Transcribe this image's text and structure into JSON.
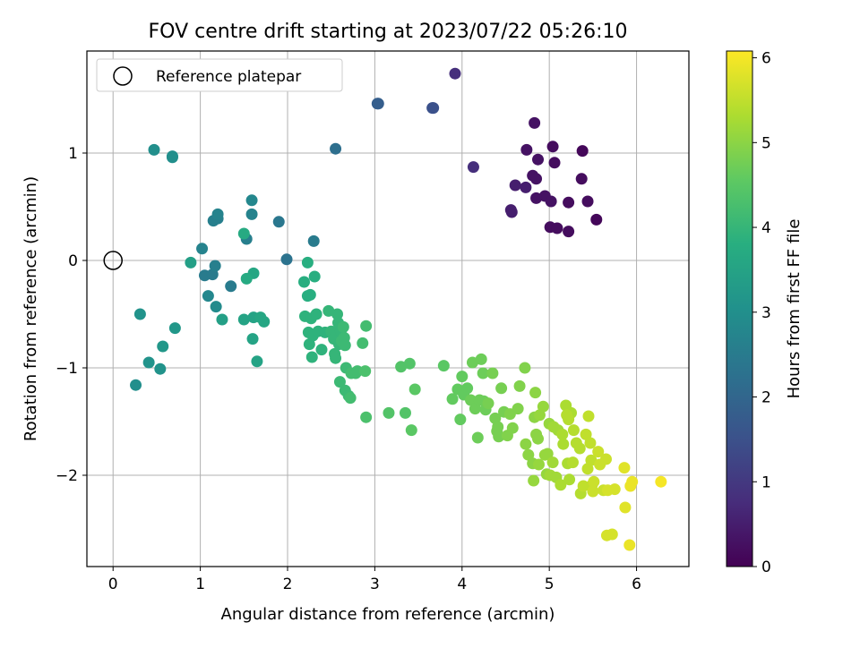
{
  "chart_data": {
    "type": "scatter",
    "title": "FOV centre drift starting at 2023/07/22 05:26:10",
    "xlabel": "Angular distance from reference (arcmin)",
    "ylabel": "Rotation from reference (arcmin)",
    "xlim": [
      -0.3,
      6.6
    ],
    "ylim": [
      -2.85,
      1.95
    ],
    "xticks": [
      0,
      1,
      2,
      3,
      4,
      5,
      6
    ],
    "yticks": [
      -2,
      -1,
      0,
      1
    ],
    "grid": true,
    "legend": {
      "placement": "top-left",
      "entries": [
        "Reference platepar"
      ]
    },
    "reference_point": {
      "x": 0,
      "y": 0
    },
    "colorbar": {
      "label": "Hours from first FF file",
      "min": 0,
      "max": 6.08,
      "ticks": [
        0,
        1,
        2,
        3,
        4,
        5,
        6
      ],
      "colormap": "viridis"
    },
    "points": [
      [
        3.92,
        1.74,
        0.8
      ],
      [
        4.83,
        1.28,
        0.3
      ],
      [
        5.04,
        1.06,
        0.2
      ],
      [
        4.74,
        1.03,
        0.3
      ],
      [
        5.38,
        1.02,
        0.1
      ],
      [
        4.87,
        0.94,
        0.3
      ],
      [
        5.06,
        0.91,
        0.2
      ],
      [
        4.13,
        0.87,
        0.8
      ],
      [
        4.81,
        0.79,
        0.3
      ],
      [
        4.85,
        0.76,
        0.3
      ],
      [
        5.37,
        0.76,
        0.2
      ],
      [
        4.61,
        0.7,
        0.5
      ],
      [
        4.73,
        0.68,
        0.5
      ],
      [
        4.95,
        0.6,
        0.3
      ],
      [
        5.44,
        0.55,
        0.2
      ],
      [
        4.85,
        0.58,
        0.3
      ],
      [
        5.02,
        0.55,
        0.3
      ],
      [
        5.22,
        0.54,
        0.2
      ],
      [
        4.56,
        0.47,
        0.5
      ],
      [
        4.57,
        0.45,
        0.5
      ],
      [
        5.54,
        0.38,
        0.1
      ],
      [
        5.01,
        0.31,
        0.2
      ],
      [
        5.09,
        0.3,
        0.2
      ],
      [
        5.22,
        0.27,
        0.2
      ],
      [
        3.03,
        1.46,
        1.8
      ],
      [
        3.04,
        1.46,
        1.8
      ],
      [
        3.66,
        1.42,
        1.5
      ],
      [
        3.67,
        1.42,
        1.5
      ],
      [
        2.55,
        1.04,
        2.2
      ],
      [
        1.99,
        0.01,
        2.3
      ],
      [
        2.3,
        0.18,
        2.5
      ],
      [
        1.9,
        0.36,
        2.4
      ],
      [
        1.35,
        -0.24,
        2.5
      ],
      [
        1.05,
        -0.14,
        2.5
      ],
      [
        1.14,
        -0.13,
        2.5
      ],
      [
        1.17,
        -0.05,
        2.6
      ],
      [
        1.53,
        0.2,
        2.6
      ],
      [
        1.2,
        0.39,
        2.6
      ],
      [
        1.15,
        0.37,
        2.6
      ],
      [
        1.2,
        0.43,
        2.7
      ],
      [
        1.02,
        0.11,
        2.7
      ],
      [
        1.59,
        0.43,
        2.7
      ],
      [
        1.59,
        0.56,
        2.8
      ],
      [
        1.09,
        -0.33,
        2.8
      ],
      [
        1.18,
        -0.43,
        2.9
      ],
      [
        0.47,
        1.03,
        3.0
      ],
      [
        0.68,
        0.97,
        3.0
      ],
      [
        0.68,
        0.96,
        3.0
      ],
      [
        0.26,
        -1.16,
        3.0
      ],
      [
        0.31,
        -0.5,
        3.1
      ],
      [
        0.41,
        -0.95,
        3.1
      ],
      [
        0.54,
        -1.01,
        3.1
      ],
      [
        0.57,
        -0.8,
        3.2
      ],
      [
        0.71,
        -0.63,
        3.2
      ],
      [
        0.89,
        -0.02,
        3.4
      ],
      [
        1.25,
        -0.55,
        3.4
      ],
      [
        1.5,
        -0.55,
        3.5
      ],
      [
        1.6,
        -0.73,
        3.5
      ],
      [
        1.61,
        -0.53,
        3.5
      ],
      [
        1.65,
        -0.94,
        3.5
      ],
      [
        1.69,
        -0.53,
        3.6
      ],
      [
        1.73,
        -0.57,
        3.6
      ],
      [
        1.61,
        -0.12,
        3.6
      ],
      [
        1.53,
        -0.17,
        3.7
      ],
      [
        1.5,
        0.25,
        3.7
      ],
      [
        2.23,
        -0.02,
        3.8
      ],
      [
        2.19,
        -0.2,
        3.8
      ],
      [
        2.23,
        -0.33,
        3.8
      ],
      [
        2.26,
        -0.32,
        3.8
      ],
      [
        2.31,
        -0.15,
        3.8
      ],
      [
        2.2,
        -0.52,
        3.9
      ],
      [
        2.27,
        -0.54,
        3.9
      ],
      [
        2.24,
        -0.67,
        3.9
      ],
      [
        2.25,
        -0.78,
        3.9
      ],
      [
        2.28,
        -0.9,
        3.9
      ],
      [
        2.29,
        -0.7,
        3.9
      ],
      [
        2.33,
        -0.5,
        3.9
      ],
      [
        2.35,
        -0.66,
        3.9
      ],
      [
        2.39,
        -0.83,
        3.9
      ],
      [
        2.43,
        -0.67,
        3.9
      ],
      [
        2.47,
        -0.47,
        4.0
      ],
      [
        2.5,
        -0.66,
        4.0
      ],
      [
        2.53,
        -0.73,
        4.0
      ],
      [
        2.54,
        -0.87,
        4.0
      ],
      [
        2.55,
        -0.91,
        4.0
      ],
      [
        2.57,
        -0.5,
        4.0
      ],
      [
        2.58,
        -0.58,
        4.0
      ],
      [
        2.6,
        -0.63,
        4.0
      ],
      [
        2.61,
        -0.66,
        4.0
      ],
      [
        2.59,
        -0.78,
        4.0
      ],
      [
        2.62,
        -0.75,
        4.1
      ],
      [
        2.64,
        -0.62,
        4.1
      ],
      [
        2.65,
        -0.72,
        4.1
      ],
      [
        2.66,
        -0.79,
        4.1
      ],
      [
        2.67,
        -1.0,
        4.1
      ],
      [
        2.6,
        -1.13,
        4.1
      ],
      [
        2.66,
        -1.21,
        4.1
      ],
      [
        2.7,
        -1.26,
        4.1
      ],
      [
        2.72,
        -1.28,
        4.2
      ],
      [
        2.73,
        -1.05,
        4.2
      ],
      [
        2.78,
        -1.05,
        4.2
      ],
      [
        2.8,
        -1.03,
        4.2
      ],
      [
        2.86,
        -0.77,
        4.2
      ],
      [
        2.9,
        -0.61,
        4.2
      ],
      [
        2.89,
        -1.03,
        4.3
      ],
      [
        2.9,
        -1.46,
        4.3
      ],
      [
        3.16,
        -1.42,
        4.4
      ],
      [
        3.3,
        -0.99,
        4.4
      ],
      [
        3.35,
        -1.42,
        4.4
      ],
      [
        3.4,
        -0.96,
        4.4
      ],
      [
        3.42,
        -1.58,
        4.5
      ],
      [
        3.46,
        -1.2,
        4.5
      ],
      [
        3.79,
        -0.98,
        4.5
      ],
      [
        3.89,
        -1.29,
        4.6
      ],
      [
        3.95,
        -1.2,
        4.6
      ],
      [
        3.98,
        -1.48,
        4.6
      ],
      [
        4.0,
        -1.08,
        4.6
      ],
      [
        4.02,
        -1.25,
        4.6
      ],
      [
        4.06,
        -1.19,
        4.6
      ],
      [
        4.1,
        -1.3,
        4.7
      ],
      [
        4.12,
        -0.95,
        4.7
      ],
      [
        4.15,
        -1.38,
        4.7
      ],
      [
        4.18,
        -1.65,
        4.7
      ],
      [
        4.2,
        -1.3,
        4.7
      ],
      [
        4.22,
        -0.92,
        4.7
      ],
      [
        4.24,
        -1.05,
        4.7
      ],
      [
        4.25,
        -1.31,
        4.7
      ],
      [
        4.27,
        -1.39,
        4.7
      ],
      [
        4.3,
        -1.33,
        4.8
      ],
      [
        4.35,
        -1.05,
        4.8
      ],
      [
        4.38,
        -1.47,
        4.8
      ],
      [
        4.4,
        -1.59,
        4.8
      ],
      [
        4.41,
        -1.55,
        4.8
      ],
      [
        4.42,
        -1.64,
        4.8
      ],
      [
        4.45,
        -1.19,
        4.8
      ],
      [
        4.48,
        -1.41,
        4.8
      ],
      [
        4.52,
        -1.63,
        4.9
      ],
      [
        4.55,
        -1.43,
        4.9
      ],
      [
        4.58,
        -1.56,
        4.9
      ],
      [
        4.64,
        -1.38,
        4.9
      ],
      [
        4.66,
        -1.17,
        4.9
      ],
      [
        4.72,
        -1.0,
        4.9
      ],
      [
        4.73,
        -1.71,
        5.0
      ],
      [
        4.76,
        -1.81,
        5.0
      ],
      [
        4.81,
        -1.89,
        5.0
      ],
      [
        4.83,
        -1.46,
        5.0
      ],
      [
        4.84,
        -1.23,
        5.0
      ],
      [
        4.85,
        -1.62,
        5.0
      ],
      [
        4.87,
        -1.66,
        5.0
      ],
      [
        4.88,
        -1.9,
        5.1
      ],
      [
        4.89,
        -1.44,
        5.1
      ],
      [
        4.93,
        -1.36,
        5.1
      ],
      [
        4.95,
        -1.81,
        5.1
      ],
      [
        4.97,
        -1.99,
        5.1
      ],
      [
        4.98,
        -1.8,
        5.1
      ],
      [
        5.0,
        -1.52,
        5.1
      ],
      [
        4.82,
        -2.05,
        5.1
      ],
      [
        5.01,
        -2.0,
        5.2
      ],
      [
        5.04,
        -1.88,
        5.2
      ],
      [
        5.05,
        -1.55,
        5.2
      ],
      [
        5.08,
        -2.02,
        5.2
      ],
      [
        5.1,
        -1.58,
        5.2
      ],
      [
        5.13,
        -2.09,
        5.3
      ],
      [
        5.15,
        -1.62,
        5.3
      ],
      [
        5.16,
        -1.71,
        5.3
      ],
      [
        5.19,
        -1.35,
        5.3
      ],
      [
        5.21,
        -1.89,
        5.3
      ],
      [
        5.23,
        -2.04,
        5.3
      ],
      [
        5.25,
        -1.42,
        5.3
      ],
      [
        5.27,
        -1.88,
        5.4
      ],
      [
        5.28,
        -1.58,
        5.4
      ],
      [
        5.2,
        -1.44,
        5.4
      ],
      [
        5.22,
        -1.48,
        5.4
      ],
      [
        5.31,
        -1.7,
        5.4
      ],
      [
        5.35,
        -1.75,
        5.4
      ],
      [
        5.36,
        -2.17,
        5.4
      ],
      [
        5.39,
        -2.1,
        5.5
      ],
      [
        5.42,
        -1.62,
        5.5
      ],
      [
        5.44,
        -1.94,
        5.5
      ],
      [
        5.45,
        -1.45,
        5.5
      ],
      [
        5.47,
        -1.7,
        5.5
      ],
      [
        5.48,
        -1.86,
        5.5
      ],
      [
        5.49,
        -2.09,
        5.5
      ],
      [
        5.5,
        -2.15,
        5.6
      ],
      [
        5.51,
        -2.06,
        5.6
      ],
      [
        5.56,
        -1.78,
        5.6
      ],
      [
        5.58,
        -1.9,
        5.6
      ],
      [
        5.62,
        -2.14,
        5.6
      ],
      [
        5.65,
        -1.85,
        5.6
      ],
      [
        5.66,
        -2.56,
        5.7
      ],
      [
        5.67,
        -2.14,
        5.7
      ],
      [
        5.72,
        -2.55,
        5.7
      ],
      [
        5.75,
        -2.13,
        5.7
      ],
      [
        5.86,
        -1.93,
        5.8
      ],
      [
        5.87,
        -2.3,
        5.8
      ],
      [
        5.92,
        -2.65,
        5.9
      ],
      [
        5.93,
        -2.1,
        5.9
      ],
      [
        5.95,
        -2.06,
        5.9
      ],
      [
        6.28,
        -2.06,
        6.0
      ]
    ]
  }
}
